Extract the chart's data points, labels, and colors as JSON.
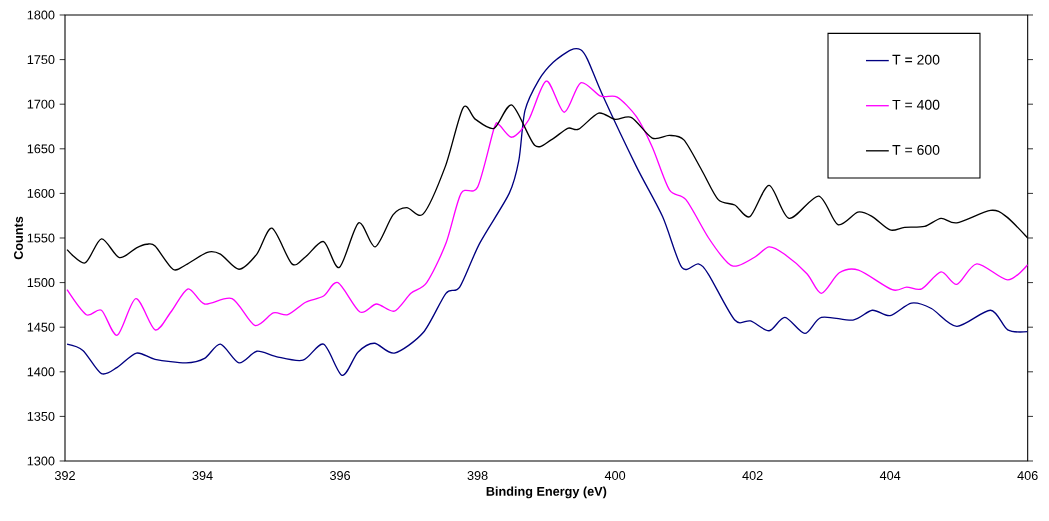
{
  "chart_data": {
    "type": "line",
    "xlabel": "Binding Energy (eV)",
    "ylabel": "Counts",
    "xlim": [
      392,
      406
    ],
    "xticks": [
      392,
      394,
      396,
      398,
      400,
      402,
      404,
      406
    ],
    "ylim": [
      1300,
      1800
    ],
    "yticks": [
      1300,
      1350,
      1400,
      1450,
      1500,
      1550,
      1600,
      1650,
      1700,
      1750,
      1800
    ],
    "grid": false,
    "legend": "top right",
    "marker": "none",
    "line_style": "solid",
    "series": [
      {
        "name": "T = 200",
        "color": "#000080",
        "x": [
          392.03,
          392.26,
          392.53,
          392.76,
          393.04,
          393.31,
          393.76,
          394.03,
          394.26,
          394.53,
          394.79,
          395.07,
          395.46,
          395.76,
          396.03,
          396.26,
          396.5,
          396.79,
          397.21,
          397.54,
          397.74,
          398.03,
          398.46,
          398.6,
          398.69,
          398.89,
          399.1,
          399.36,
          399.5,
          399.6,
          399.83,
          400.31,
          400.69,
          400.97,
          401.21,
          401.36,
          401.74,
          401.97,
          402.24,
          402.47,
          402.76,
          403.0,
          403.46,
          403.74,
          404.0,
          404.31,
          404.6,
          404.97,
          405.46,
          405.71,
          406.0
        ],
        "values": [
          1431,
          1424,
          1398,
          1405,
          1421,
          1414,
          1410,
          1415,
          1431,
          1410,
          1423,
          1417,
          1413,
          1431,
          1396,
          1422,
          1432,
          1421,
          1444,
          1488,
          1495,
          1544,
          1600,
          1637,
          1693,
          1727,
          1747,
          1761,
          1761,
          1750,
          1708,
          1630,
          1574,
          1517,
          1521,
          1509,
          1458,
          1457,
          1446,
          1461,
          1443,
          1461,
          1458,
          1469,
          1463,
          1477,
          1471,
          1451,
          1469,
          1447,
          1445
        ]
      },
      {
        "name": "T  = 400",
        "color": "#ff00ff",
        "x": [
          392.03,
          392.31,
          392.53,
          392.76,
          393.03,
          393.31,
          393.54,
          393.79,
          394.03,
          394.43,
          394.76,
          395.03,
          395.24,
          395.5,
          395.76,
          395.97,
          396.29,
          396.53,
          396.79,
          397.03,
          397.26,
          397.54,
          397.76,
          398.0,
          398.24,
          398.31,
          398.5,
          398.74,
          399.0,
          399.26,
          399.5,
          399.79,
          400.03,
          400.31,
          400.54,
          400.79,
          401.03,
          401.36,
          401.64,
          401.79,
          402.04,
          402.24,
          402.46,
          402.79,
          403.0,
          403.26,
          403.54,
          404.03,
          404.24,
          404.46,
          404.74,
          404.97,
          405.26,
          405.71,
          406.0
        ],
        "values": [
          1492,
          1464,
          1469,
          1441,
          1482,
          1447,
          1467,
          1493,
          1476,
          1482,
          1452,
          1466,
          1464,
          1478,
          1485,
          1500,
          1467,
          1476,
          1468,
          1488,
          1500,
          1544,
          1600,
          1607,
          1673,
          1677,
          1663,
          1682,
          1726,
          1691,
          1724,
          1709,
          1708,
          1686,
          1652,
          1604,
          1593,
          1550,
          1522,
          1519,
          1529,
          1540,
          1532,
          1510,
          1488,
          1511,
          1514,
          1492,
          1495,
          1493,
          1512,
          1498,
          1521,
          1503,
          1520
        ]
      },
      {
        "name": "T = 600",
        "color": "#000000",
        "x": [
          392.03,
          392.29,
          392.53,
          392.79,
          393.04,
          393.19,
          393.31,
          393.57,
          393.76,
          394.07,
          394.26,
          394.53,
          394.79,
          395.01,
          395.3,
          395.5,
          395.76,
          395.99,
          396.27,
          396.51,
          396.77,
          396.97,
          397.21,
          397.53,
          397.79,
          397.97,
          398.24,
          398.5,
          398.83,
          399.07,
          399.31,
          399.47,
          399.76,
          400.0,
          400.24,
          400.54,
          400.79,
          401.0,
          401.26,
          401.5,
          401.74,
          401.96,
          402.24,
          402.53,
          402.96,
          403.24,
          403.53,
          403.74,
          404.0,
          404.21,
          404.5,
          404.74,
          404.97,
          405.46,
          405.69,
          406.0
        ],
        "values": [
          1537,
          1522,
          1549,
          1528,
          1539,
          1543,
          1541,
          1515,
          1520,
          1534,
          1532,
          1515,
          1532,
          1561,
          1521,
          1529,
          1546,
          1517,
          1567,
          1540,
          1576,
          1584,
          1577,
          1630,
          1696,
          1683,
          1673,
          1699,
          1654,
          1660,
          1673,
          1672,
          1690,
          1683,
          1685,
          1662,
          1665,
          1660,
          1626,
          1593,
          1587,
          1574,
          1609,
          1572,
          1597,
          1565,
          1579,
          1574,
          1559,
          1562,
          1563,
          1572,
          1567,
          1581,
          1574,
          1550
        ]
      }
    ]
  }
}
